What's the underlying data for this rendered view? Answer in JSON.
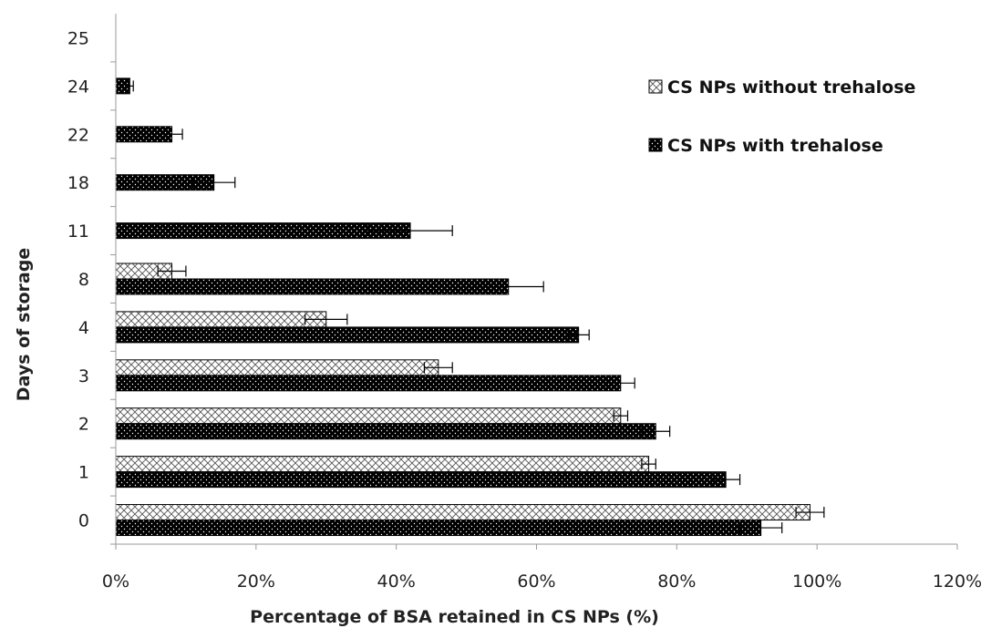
{
  "chart_data": {
    "type": "bar",
    "orientation": "horizontal",
    "categories": [
      "0",
      "1",
      "2",
      "3",
      "4",
      "8",
      "11",
      "18",
      "22",
      "24",
      "25"
    ],
    "series": [
      {
        "name": "CS NPs without trehalose",
        "pattern": "crosshatch",
        "values": [
          99,
          76,
          72,
          46,
          30,
          8,
          null,
          null,
          null,
          null,
          null
        ],
        "errors": [
          2,
          1,
          1,
          2,
          3,
          2,
          null,
          null,
          null,
          null,
          null
        ]
      },
      {
        "name": "CS NPs with trehalose",
        "pattern": "dotted-black",
        "values": [
          92,
          87,
          77,
          72,
          66,
          56,
          42,
          14,
          8,
          2,
          null
        ],
        "errors": [
          3,
          2,
          2,
          2,
          1.5,
          5,
          6,
          3,
          1.5,
          0.5,
          null
        ]
      }
    ],
    "xlabel": "Percentage of BSA retained in CS NPs (%)",
    "ylabel": "Days of storage",
    "xlim": [
      0,
      120
    ],
    "xticks": [
      "0%",
      "20%",
      "40%",
      "60%",
      "80%",
      "100%",
      "120%"
    ],
    "grid": false,
    "legend_position": "top-right"
  }
}
